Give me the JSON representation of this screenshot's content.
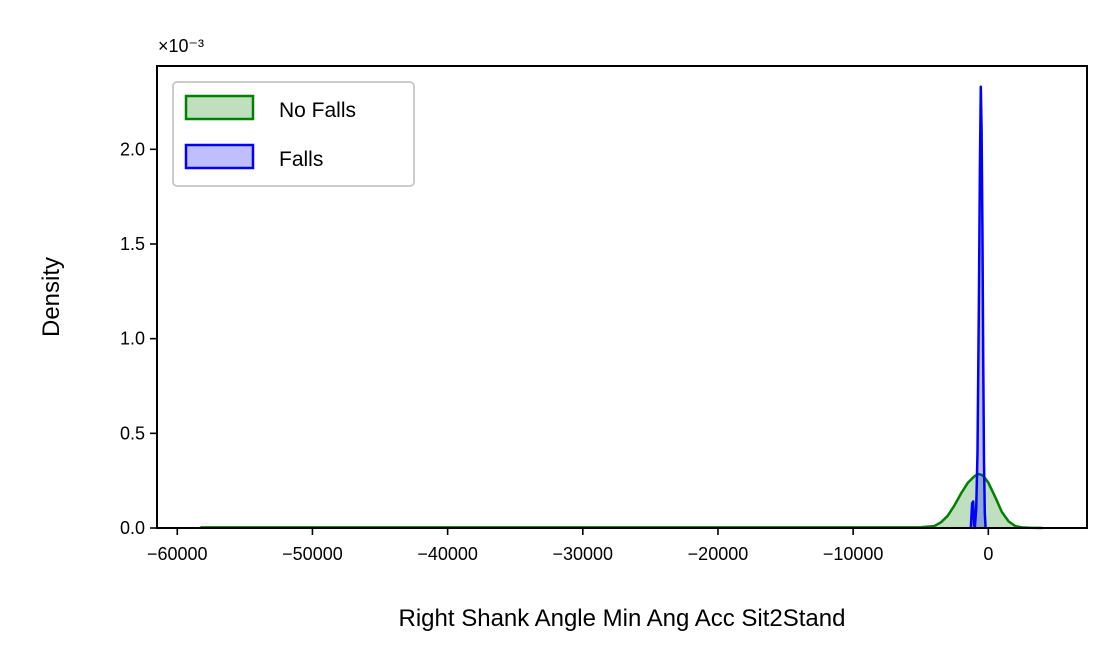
{
  "chart_data": {
    "type": "area",
    "xlabel": "Right Shank Angle Min Ang Acc Sit2Stand",
    "ylabel": "Density",
    "y_scale_label": "×10⁻³",
    "xlim": [
      -61500,
      7300
    ],
    "ylim": [
      0,
      0.00244
    ],
    "xticks": [
      {
        "value": -60000,
        "label": "−60000"
      },
      {
        "value": -50000,
        "label": "−50000"
      },
      {
        "value": -40000,
        "label": "−40000"
      },
      {
        "value": -30000,
        "label": "−30000"
      },
      {
        "value": -20000,
        "label": "−20000"
      },
      {
        "value": -10000,
        "label": "−10000"
      },
      {
        "value": 0,
        "label": "0"
      }
    ],
    "yticks": [
      {
        "value": 0.0,
        "label": "0.0"
      },
      {
        "value": 0.0005,
        "label": "0.5"
      },
      {
        "value": 0.001,
        "label": "1.0"
      },
      {
        "value": 0.0015,
        "label": "1.5"
      },
      {
        "value": 0.002,
        "label": "2.0"
      }
    ],
    "grid": false,
    "legend_position": "top-left",
    "series": [
      {
        "name": "No Falls",
        "color": "#008000",
        "fill": true,
        "points": [
          [
            -58300,
            3e-06
          ],
          [
            -20000,
            3e-06
          ],
          [
            -8000,
            3e-06
          ],
          [
            -5000,
            4e-06
          ],
          [
            -4000,
            1e-05
          ],
          [
            -3500,
            3e-05
          ],
          [
            -3000,
            6.5e-05
          ],
          [
            -2500,
            0.00012
          ],
          [
            -2000,
            0.000185
          ],
          [
            -1500,
            0.00024
          ],
          [
            -1000,
            0.000275
          ],
          [
            -700,
            0.000285
          ],
          [
            -400,
            0.000278
          ],
          [
            0,
            0.00024
          ],
          [
            500,
            0.000165
          ],
          [
            1000,
            8.5e-05
          ],
          [
            1500,
            3.5e-05
          ],
          [
            2000,
            1e-05
          ],
          [
            2500,
            3e-06
          ],
          [
            3000,
            1e-06
          ],
          [
            4000,
            0
          ]
        ]
      },
      {
        "name": "Falls",
        "color": "#0000ff",
        "fill": true,
        "points": [
          [
            -1300,
            0
          ],
          [
            -1200,
            0.00013
          ],
          [
            -1120,
            0.00014
          ],
          [
            -1050,
            2e-05
          ],
          [
            -1000,
            0
          ],
          [
            -900,
            0.0001
          ],
          [
            -800,
            0.0004
          ],
          [
            -700,
            0.0012
          ],
          [
            -620,
            0.0019
          ],
          [
            -560,
            0.00233
          ],
          [
            -500,
            0.0021
          ],
          [
            -440,
            0.0016
          ],
          [
            -380,
            0.0009
          ],
          [
            -320,
            0.00035
          ],
          [
            -260,
            8e-05
          ],
          [
            -200,
            0
          ]
        ]
      }
    ]
  }
}
